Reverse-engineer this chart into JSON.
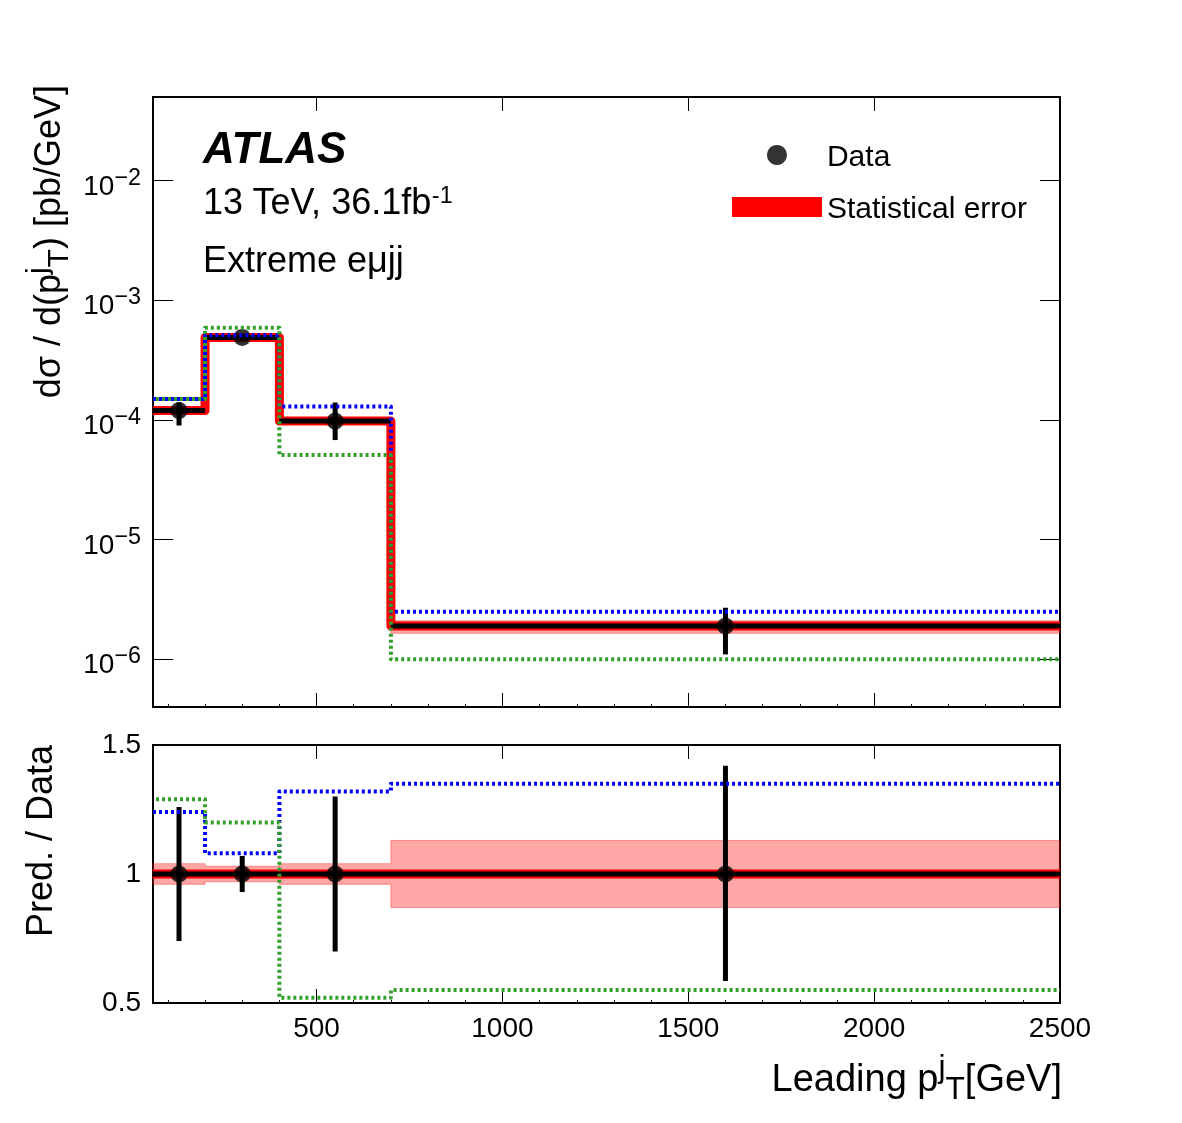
{
  "chart_data": [
    {
      "type": "step",
      "ylabel": "dσ / d(p$^{j}$$_{T}$) [pb/GeV]",
      "log": "y",
      "xlim": [
        60,
        2500
      ],
      "xticks": [
        500,
        1000,
        1500,
        2000,
        2500
      ],
      "ylim": [
        4e-07,
        0.05
      ],
      "yticks": [
        {
          "value": 1e-06,
          "label": "10$^{−6}$"
        },
        {
          "value": 1e-05,
          "label": "10$^{−5}$"
        },
        {
          "value": 0.0001,
          "label": "10$^{−4}$"
        },
        {
          "value": 0.001,
          "label": "10$^{−3}$"
        },
        {
          "value": 0.01,
          "label": "10$^{−2}$"
        }
      ],
      "tick_labels": "y",
      "grid": false,
      "legend": "top right",
      "annotations": [
        "ATLAS",
        "13 TeV, 36.1fb$^{-1}$",
        "Extreme eμjj"
      ],
      "series": [
        {
          "type": "scatter",
          "name": "Data",
          "color": "#000000",
          "marker": "circle",
          "x": [
            130,
            300,
            550,
            1600
          ],
          "values": [
            0.00012,
            0.00049,
            9.8e-05,
            1.9e-06
          ],
          "errors": [
            [
              9e-05,
              0.00014
            ],
            [
              0.00046,
              0.00052
            ],
            [
              6.8e-05,
              0.00014
            ],
            [
              1.1e-06,
              2.7e-06
            ]
          ],
          "xerrors": [
            [
              60,
              200
            ],
            [
              200,
              400
            ],
            [
              400,
              700
            ],
            [
              700,
              2500
            ]
          ]
        },
        {
          "type": "step",
          "name": "Statistical error",
          "color": "#ff0000",
          "x": [
            60,
            200,
            400,
            700,
            2500
          ],
          "values": [
            0.00012,
            0.00049,
            9.8e-05,
            1.9e-06,
            1.9e-06
          ],
          "lower": [
            0.000115,
            0.00047,
            9.4e-05,
            1.65e-06,
            1.65e-06
          ],
          "upper": [
            0.000125,
            0.00051,
            0.000102,
            2.1e-06,
            2.1e-06
          ]
        },
        {
          "type": "step",
          "color": "#0000ff",
          "line_style": "dotted",
          "x": [
            60,
            200,
            400,
            700,
            2500
          ],
          "values": [
            0.00015,
            0.00051,
            0.00013,
            2.5e-06,
            2.5e-06
          ]
        },
        {
          "type": "step",
          "color": "#33a02c",
          "line_style": "dotted",
          "x": [
            60,
            200,
            400,
            700,
            2500
          ],
          "values": [
            0.00015,
            0.00059,
            5.1e-05,
            1e-06,
            1e-06
          ]
        }
      ]
    },
    {
      "type": "step",
      "xlabel": "Leading p$^{j}$$_{T}$[GeV]",
      "ylabel": "Pred. / Data",
      "xlim": [
        60,
        2500
      ],
      "xticks": [
        500,
        1000,
        1500,
        2000,
        2500
      ],
      "ylim": [
        0.5,
        1.5
      ],
      "yticks": [
        0.5,
        1,
        1.5
      ],
      "grid": false,
      "series": [
        {
          "type": "scatter",
          "color": "#000000",
          "marker": "circle",
          "x": [
            130,
            300,
            550,
            1600
          ],
          "values": [
            1,
            1,
            1,
            1
          ],
          "errors": [
            [
              0.74,
              1.26
            ],
            [
              0.93,
              1.07
            ],
            [
              0.7,
              1.3
            ],
            [
              0.585,
              1.42
            ]
          ],
          "xerrors": [
            [
              60,
              200
            ],
            [
              200,
              400
            ],
            [
              400,
              700
            ],
            [
              700,
              2500
            ]
          ]
        },
        {
          "type": "step",
          "color": "#ff0000",
          "x": [
            60,
            200,
            400,
            700,
            2500
          ],
          "values": [
            1,
            1,
            1,
            1,
            1
          ],
          "lower": [
            0.96,
            0.97,
            0.96,
            0.87,
            0.87
          ],
          "upper": [
            1.04,
            1.03,
            1.04,
            1.13,
            1.13
          ]
        },
        {
          "type": "step",
          "color": "#0000ff",
          "line_style": "dotted",
          "x": [
            60,
            200,
            400,
            700,
            2500
          ],
          "values": [
            1.24,
            1.08,
            1.32,
            1.35,
            1.35
          ]
        },
        {
          "type": "step",
          "color": "#33a02c",
          "line_style": "dotted",
          "x": [
            60,
            200,
            400,
            700,
            2500
          ],
          "values": [
            1.29,
            1.2,
            0.52,
            0.55,
            0.55
          ]
        }
      ]
    }
  ]
}
